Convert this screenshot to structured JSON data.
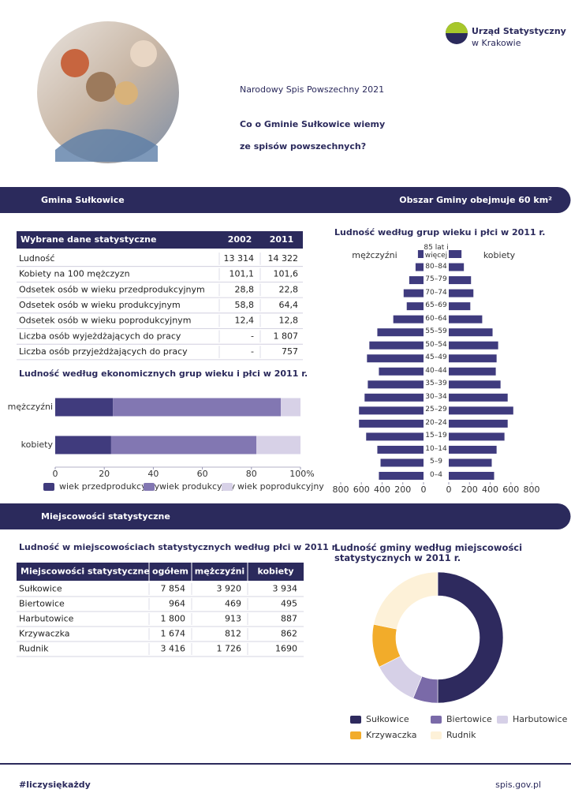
{
  "header": {
    "logo_line1": "Urząd Statystyczny",
    "logo_line2": "w Krakowie",
    "title": "Narodowy Spis Powszechny 2021",
    "subtitle_line1": "Co o Gminie Sułkowice wiemy",
    "subtitle_line2": "ze spisów powszechnych?"
  },
  "section1": {
    "title": "Gmina Sułkowice",
    "area": "Obszar Gminy obejmuje 60 km²"
  },
  "table1": {
    "columns": [
      "Wybrane dane statystyczne",
      "2002",
      "2011"
    ],
    "rows": [
      [
        "Ludność",
        "13 314",
        "14 322"
      ],
      [
        "Kobiety na 100 mężczyzn",
        "101,1",
        "101,6"
      ],
      [
        "Odsetek osób w wieku przedprodukcyjnym",
        "28,8",
        "22,8"
      ],
      [
        "Odsetek osób w wieku produkcyjnym",
        "58,8",
        "64,4"
      ],
      [
        "Odsetek osób w wieku poprodukcyjnym",
        "12,4",
        "12,8"
      ],
      [
        "Liczba osób wyjeżdżających do pracy",
        "-",
        "1 807"
      ],
      [
        "Liczba osób przyjeżdżających do pracy",
        "-",
        "757"
      ]
    ]
  },
  "section2": {
    "title": "Miejscowości statystyczne"
  },
  "table2": {
    "title": "Ludność w miejscowościach statystycznych według płci w 2011 r.",
    "columns": [
      "Miejscowości statystyczne",
      "ogółem",
      "mężczyźni",
      "kobiety"
    ],
    "rows": [
      [
        "Sułkowice",
        "7 854",
        "3 920",
        "3 934"
      ],
      [
        "Biertowice",
        "964",
        "469",
        "495"
      ],
      [
        "Harbutowice",
        "1 800",
        "913",
        "887"
      ],
      [
        "Krzywaczka",
        "1 674",
        "812",
        "862"
      ],
      [
        "Rudnik",
        "3 416",
        "1 726",
        "1690"
      ]
    ]
  },
  "footer": {
    "hashtag": "#liczysiękażdy",
    "url": "spis.gov.pl"
  },
  "chart_data": [
    {
      "type": "stacked-bar",
      "title": "Ludność według ekonomicznych grup wieku i płci w 2011 r.",
      "categories": [
        "mężczyźni",
        "kobiety"
      ],
      "series": [
        {
          "name": "wiek przedprodukcyjny",
          "color": "#403b7d",
          "values": [
            23.5,
            22.8
          ]
        },
        {
          "name": "wiek produkcyjny",
          "color": "#8277b2",
          "values": [
            68.5,
            59.2
          ]
        },
        {
          "name": "wiek poprodukcyjny",
          "color": "#d7d1e7",
          "values": [
            8,
            18
          ]
        }
      ],
      "xlim": [
        0,
        100
      ],
      "xticks": [
        0,
        20,
        40,
        60,
        80,
        {
          "value": 100,
          "label": "100%"
        }
      ],
      "legend": "bottom"
    },
    {
      "type": "pyramid",
      "title": "Ludność według grup wieku i płci w 2011 r.",
      "categories": [
        "85 lat i więcej",
        "80–84",
        "75–79",
        "70–74",
        "65–69",
        "60–64",
        "55–59",
        "50–54",
        "45–49",
        "40–44",
        "35–39",
        "30–34",
        "25–29",
        "20–24",
        "15–19",
        "10–14",
        "5–9",
        "0–4"
      ],
      "series": [
        {
          "name": "mężczyźni",
          "color": "#3f3b7e",
          "values": [
            54,
            77,
            138,
            192,
            162,
            292,
            446,
            523,
            546,
            431,
            538,
            569,
            623,
            623,
            554,
            446,
            415,
            431
          ]
        },
        {
          "name": "kobiety",
          "color": "#3f3b7e",
          "values": [
            123,
            146,
            215,
            238,
            208,
            323,
            423,
            477,
            462,
            454,
            500,
            569,
            623,
            569,
            538,
            462,
            415,
            438
          ]
        }
      ],
      "xlim": [
        0,
        800
      ],
      "xticks": [
        0,
        200,
        400,
        600,
        800
      ]
    },
    {
      "type": "donut",
      "title": "Ludność gminy według miejscowości statystycznych w 2011 r.",
      "categories": [
        "Sułkowice",
        "Biertowice",
        "Harbutowice",
        "Krzywaczka",
        "Rudnik"
      ],
      "values": [
        7854,
        964,
        1800,
        1674,
        3416
      ],
      "colors": [
        "#2e2a5e",
        "#7a6aa8",
        "#d6d0e7",
        "#f2ac2a",
        "#fdf1d8"
      ]
    }
  ]
}
